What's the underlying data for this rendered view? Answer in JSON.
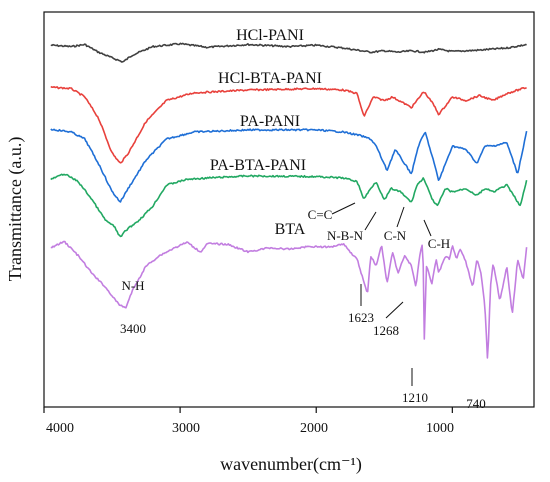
{
  "chart_data": {
    "type": "line",
    "title": "",
    "xlabel": "wavenumber(cm⁻¹)",
    "ylabel": "Transmittance (a.u.)",
    "xlim": [
      4000,
      400
    ],
    "x_ticks": [
      4000,
      3000,
      2000,
      1000
    ],
    "x_tick_labels": [
      "4000",
      "3000",
      "2000",
      "1000"
    ],
    "y_ticks_shown": false,
    "grid": false,
    "legend": "none",
    "series": [
      {
        "name": "HCl-PANI",
        "color": "#404040",
        "points": [
          [
            3950,
            0.4
          ],
          [
            3800,
            0.2
          ],
          [
            3700,
            0.5
          ],
          [
            3600,
            -0.6
          ],
          [
            3500,
            -1.4
          ],
          [
            3420,
            -2.0
          ],
          [
            3350,
            -1.0
          ],
          [
            3200,
            0.2
          ],
          [
            3000,
            0.6
          ],
          [
            2800,
            0.1
          ],
          [
            2500,
            0.5
          ],
          [
            2200,
            0.2
          ],
          [
            2000,
            0.4
          ],
          [
            1800,
            0.0
          ],
          [
            1600,
            -0.6
          ],
          [
            1500,
            -0.4
          ],
          [
            1400,
            -0.6
          ],
          [
            1300,
            -0.4
          ],
          [
            1200,
            -0.6
          ],
          [
            1100,
            -0.2
          ],
          [
            1000,
            -0.5
          ],
          [
            800,
            -0.3
          ],
          [
            600,
            0.0
          ],
          [
            450,
            0.5
          ]
        ]
      },
      {
        "name": "HCl-BTA-PANI",
        "color": "#e8413c",
        "points": [
          [
            3950,
            0.4
          ],
          [
            3800,
            0.2
          ],
          [
            3700,
            -1.0
          ],
          [
            3600,
            -4.0
          ],
          [
            3500,
            -9.0
          ],
          [
            3440,
            -10.5
          ],
          [
            3380,
            -9.0
          ],
          [
            3250,
            -4.5
          ],
          [
            3100,
            -1.5
          ],
          [
            2900,
            -0.4
          ],
          [
            2500,
            0.0
          ],
          [
            2000,
            0.2
          ],
          [
            1800,
            0.0
          ],
          [
            1700,
            -0.5
          ],
          [
            1650,
            -3.8
          ],
          [
            1580,
            -1.0
          ],
          [
            1500,
            -1.5
          ],
          [
            1440,
            -1.0
          ],
          [
            1300,
            -2.5
          ],
          [
            1240,
            -1.0
          ],
          [
            1210,
            -0.2
          ],
          [
            1140,
            -2.0
          ],
          [
            1100,
            -3.5
          ],
          [
            1000,
            -1.0
          ],
          [
            900,
            -1.5
          ],
          [
            800,
            -0.8
          ],
          [
            700,
            -1.5
          ],
          [
            600,
            -0.5
          ],
          [
            450,
            0.4
          ]
        ]
      },
      {
        "name": "PA-PANI",
        "color": "#1f6fd6",
        "points": [
          [
            3950,
            0.4
          ],
          [
            3800,
            0.0
          ],
          [
            3700,
            -1.0
          ],
          [
            3600,
            -4.5
          ],
          [
            3500,
            -8.5
          ],
          [
            3440,
            -10.0
          ],
          [
            3380,
            -8.0
          ],
          [
            3250,
            -4.0
          ],
          [
            3100,
            -1.0
          ],
          [
            2900,
            0.0
          ],
          [
            2500,
            0.3
          ],
          [
            2000,
            0.3
          ],
          [
            1800,
            0.0
          ],
          [
            1680,
            -0.5
          ],
          [
            1600,
            -1.0
          ],
          [
            1560,
            -2.0
          ],
          [
            1480,
            -5.5
          ],
          [
            1420,
            -2.5
          ],
          [
            1300,
            -6.0
          ],
          [
            1250,
            -2.0
          ],
          [
            1200,
            0.0
          ],
          [
            1140,
            -4.0
          ],
          [
            1100,
            -7.0
          ],
          [
            1000,
            -2.0
          ],
          [
            900,
            -2.5
          ],
          [
            820,
            -4.5
          ],
          [
            760,
            -2.0
          ],
          [
            700,
            -2.0
          ],
          [
            600,
            -1.5
          ],
          [
            520,
            -6.0
          ],
          [
            450,
            0.5
          ]
        ]
      },
      {
        "name": "PA-BTA-PANI",
        "color": "#22a862",
        "points": [
          [
            3950,
            -0.2
          ],
          [
            3850,
            0.6
          ],
          [
            3750,
            -0.5
          ],
          [
            3650,
            -3.0
          ],
          [
            3550,
            -6.0
          ],
          [
            3480,
            -7.0
          ],
          [
            3440,
            -8.5
          ],
          [
            3400,
            -7.5
          ],
          [
            3300,
            -6.0
          ],
          [
            3200,
            -4.0
          ],
          [
            3100,
            -1.0
          ],
          [
            2950,
            -0.2
          ],
          [
            2800,
            0.0
          ],
          [
            2500,
            0.3
          ],
          [
            2000,
            0.2
          ],
          [
            1800,
            0.0
          ],
          [
            1700,
            -0.5
          ],
          [
            1650,
            -3.0
          ],
          [
            1600,
            -1.5
          ],
          [
            1560,
            -0.5
          ],
          [
            1500,
            -3.2
          ],
          [
            1450,
            -1.5
          ],
          [
            1380,
            -2.0
          ],
          [
            1300,
            -3.5
          ],
          [
            1260,
            -1.0
          ],
          [
            1210,
            0.0
          ],
          [
            1150,
            -3.0
          ],
          [
            1110,
            -4.0
          ],
          [
            1050,
            -1.5
          ],
          [
            1000,
            -2.0
          ],
          [
            900,
            -1.5
          ],
          [
            820,
            -2.5
          ],
          [
            760,
            -1.5
          ],
          [
            700,
            -2.0
          ],
          [
            600,
            -1.0
          ],
          [
            500,
            -4.0
          ],
          [
            450,
            0.0
          ]
        ]
      },
      {
        "name": "BTA",
        "color": "#c27ee0",
        "points": [
          [
            3950,
            -0.4
          ],
          [
            3850,
            0.5
          ],
          [
            3750,
            -1.5
          ],
          [
            3650,
            -4.0
          ],
          [
            3550,
            -6.0
          ],
          [
            3450,
            -8.5
          ],
          [
            3400,
            -9.0
          ],
          [
            3350,
            -6.5
          ],
          [
            3250,
            -3.0
          ],
          [
            3150,
            -1.5
          ],
          [
            3050,
            -0.5
          ],
          [
            2950,
            0.4
          ],
          [
            2850,
            -1.0
          ],
          [
            2800,
            0.2
          ],
          [
            2650,
            0.1
          ],
          [
            2500,
            -1.0
          ],
          [
            2350,
            -0.4
          ],
          [
            2200,
            -0.6
          ],
          [
            2050,
            -0.2
          ],
          [
            1900,
            -0.3
          ],
          [
            1800,
            0.2
          ],
          [
            1750,
            -1.0
          ],
          [
            1700,
            -2.0
          ],
          [
            1623,
            -7.0
          ],
          [
            1600,
            -1.5
          ],
          [
            1560,
            -3.0
          ],
          [
            1520,
            0.0
          ],
          [
            1480,
            -5.5
          ],
          [
            1440,
            -1.0
          ],
          [
            1400,
            -4.0
          ],
          [
            1350,
            -1.5
          ],
          [
            1300,
            -3.0
          ],
          [
            1268,
            -6.0
          ],
          [
            1240,
            -1.5
          ],
          [
            1215,
            0.5
          ],
          [
            1210,
            -16.0
          ],
          [
            1190,
            -3.0
          ],
          [
            1150,
            -5.5
          ],
          [
            1120,
            -2.0
          ],
          [
            1100,
            -4.0
          ],
          [
            1050,
            -1.5
          ],
          [
            1020,
            -2.0
          ],
          [
            1000,
            0.0
          ],
          [
            970,
            -2.0
          ],
          [
            940,
            -0.5
          ],
          [
            900,
            -2.5
          ],
          [
            850,
            -6.0
          ],
          [
            820,
            -2.0
          ],
          [
            790,
            -4.0
          ],
          [
            760,
            -9.0
          ],
          [
            740,
            -17.0
          ],
          [
            720,
            -6.0
          ],
          [
            700,
            -2.5
          ],
          [
            650,
            -8.0
          ],
          [
            600,
            -3.0
          ],
          [
            560,
            -10.0
          ],
          [
            520,
            -2.0
          ],
          [
            480,
            -5.0
          ],
          [
            450,
            0.5
          ]
        ]
      }
    ],
    "annotations": [
      {
        "text": "N-H"
      },
      {
        "text": "3400"
      },
      {
        "text": "C=C"
      },
      {
        "text": "N-B-N"
      },
      {
        "text": "C-N"
      },
      {
        "text": "C-H"
      },
      {
        "text": "1623"
      },
      {
        "text": "1268"
      },
      {
        "text": "1210"
      },
      {
        "text": "740"
      }
    ],
    "x_labels_text": [
      "4000",
      "3000",
      "2000",
      "1000"
    ]
  }
}
